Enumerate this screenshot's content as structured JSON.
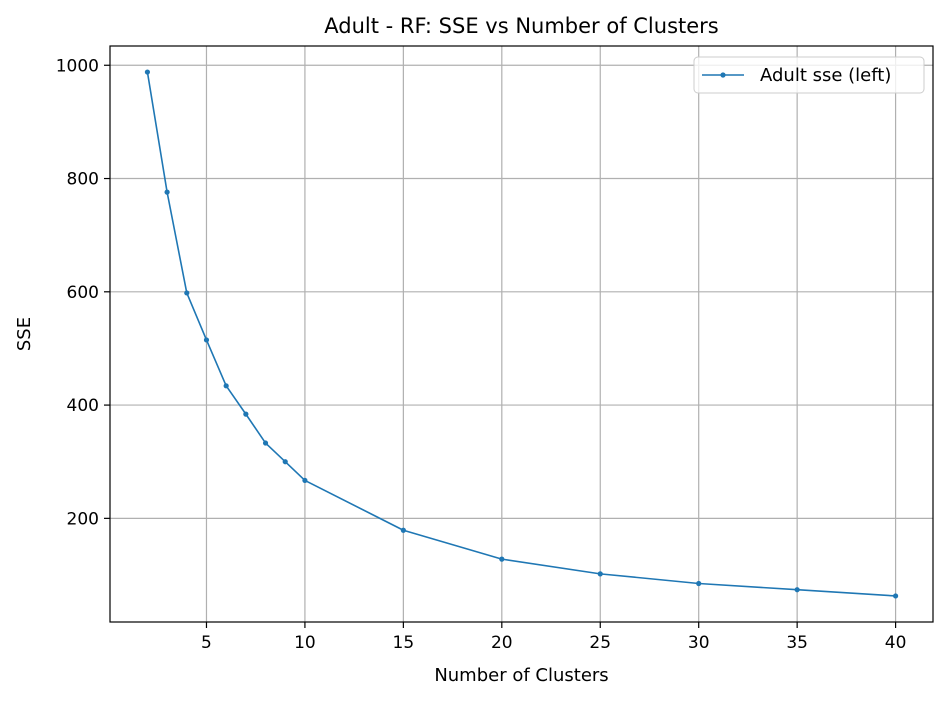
{
  "chart_data": {
    "type": "line",
    "title": "Adult - RF: SSE vs Number of Clusters",
    "xlabel": "Number of Clusters",
    "ylabel": "SSE",
    "xlim": [
      0.1,
      41.9
    ],
    "ylim": [
      17,
      1034
    ],
    "xticks": [
      5,
      10,
      15,
      20,
      25,
      30,
      35,
      40
    ],
    "yticks": [
      200,
      400,
      600,
      800,
      1000
    ],
    "grid": true,
    "legend_position": "top-right",
    "series": [
      {
        "name": "Adult sse (left)",
        "color": "#1f77b4",
        "marker": "circle",
        "x": [
          2,
          3,
          4,
          5,
          6,
          7,
          8,
          9,
          10,
          15,
          20,
          25,
          30,
          35,
          40
        ],
        "y": [
          988,
          776,
          598,
          515,
          434,
          384,
          333,
          300,
          267,
          179,
          128,
          102,
          85,
          74,
          63
        ]
      }
    ]
  }
}
